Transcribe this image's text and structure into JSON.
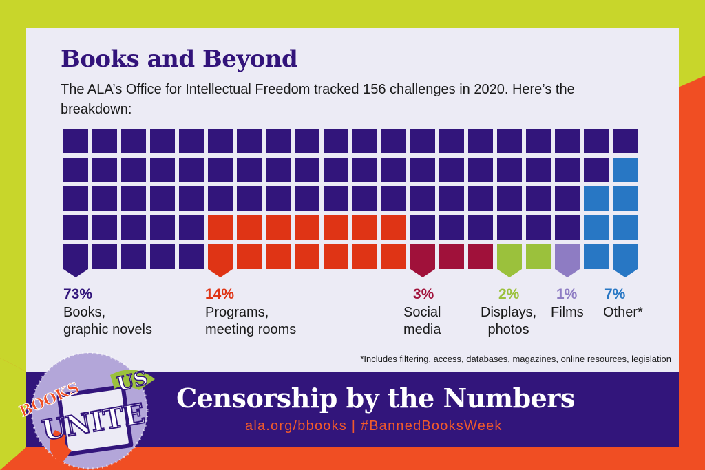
{
  "heading": "Books and Beyond",
  "subheading": "The ALA’s Office for Intellectual Freedom tracked 156 challenges in 2020. Here’s the breakdown:",
  "footnote": "*Includes filtering, access, databases, magazines, online resources, legislation",
  "banner": {
    "title": "Censorship by the Numbers",
    "links": "ala.org/bbooks  |  #BannedBooksWeek"
  },
  "logo": {
    "words": [
      "Books",
      "Unite",
      "Us"
    ]
  },
  "colors": {
    "background_red": "#f04e23",
    "background_green": "#c8d62b",
    "card": "#ecebf5",
    "banner": "#32157b"
  },
  "chart_data": {
    "type": "waffle",
    "title": "Books and Beyond",
    "grid": {
      "rows": 5,
      "columns": 20,
      "total_cells": 100
    },
    "categories": [
      {
        "name": "Books, graphic novels",
        "percent": 73,
        "percent_label": "73%",
        "label_lines": [
          "Books,",
          "graphic novels"
        ],
        "color": "#32157b"
      },
      {
        "name": "Programs, meeting rooms",
        "percent": 14,
        "percent_label": "14%",
        "label_lines": [
          "Programs,",
          "meeting rooms"
        ],
        "color": "#df3415"
      },
      {
        "name": "Social media",
        "percent": 3,
        "percent_label": "3%",
        "label_lines": [
          "Social",
          "media"
        ],
        "color": "#a0113a"
      },
      {
        "name": "Displays, photos",
        "percent": 2,
        "percent_label": "2%",
        "label_lines": [
          "Displays,",
          "photos"
        ],
        "color": "#9bc13c"
      },
      {
        "name": "Films",
        "percent": 1,
        "percent_label": "1%",
        "label_lines": [
          "Films"
        ],
        "color": "#8e7cc3"
      },
      {
        "name": "Other*",
        "percent": 7,
        "percent_label": "7%",
        "label_lines": [
          "Other*"
        ],
        "color": "#2877c4"
      }
    ]
  }
}
